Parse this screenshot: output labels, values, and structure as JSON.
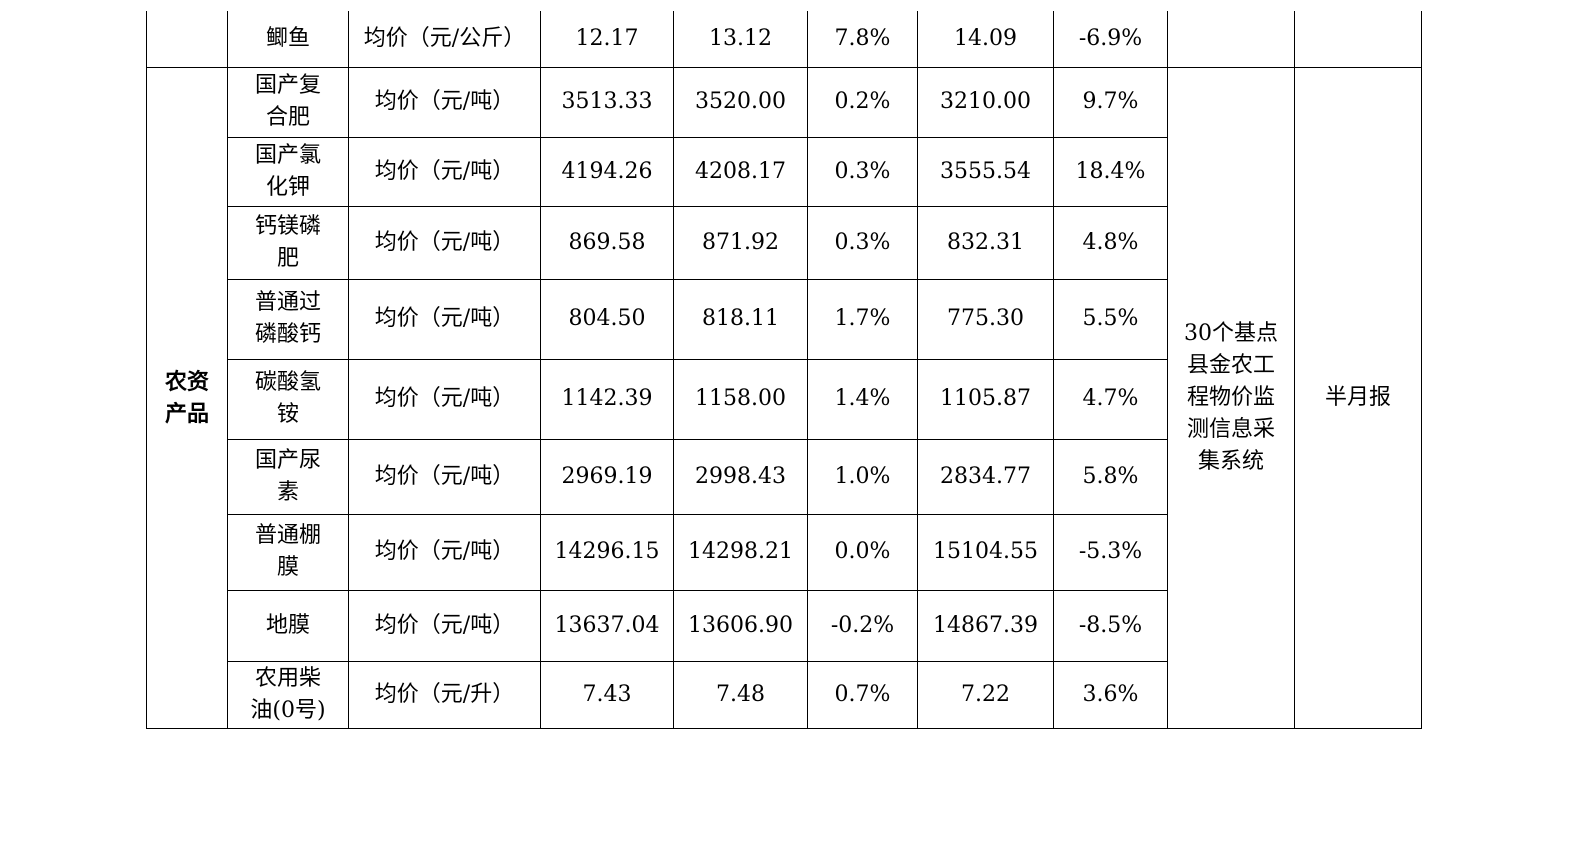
{
  "table": {
    "top_row": {
      "product": "鲫鱼",
      "unit": "均价（元/公斤）",
      "v1": "12.17",
      "v2": "13.12",
      "v3": "7.8%",
      "v4": "14.09",
      "v5": "-6.9%"
    },
    "category": "农资产品",
    "source": "30个基点县金农工程物价监测信息采集系统",
    "frequency": "半月报",
    "rows": [
      {
        "product": "国产复合肥",
        "unit": "均价（元/吨）",
        "v1": "3513.33",
        "v2": "3520.00",
        "v3": "0.2%",
        "v4": "3210.00",
        "v5": "9.7%"
      },
      {
        "product": "国产氯化钾",
        "unit": "均价（元/吨）",
        "v1": "4194.26",
        "v2": "4208.17",
        "v3": "0.3%",
        "v4": "3555.54",
        "v5": "18.4%"
      },
      {
        "product": "钙镁磷肥",
        "unit": "均价（元/吨）",
        "v1": "869.58",
        "v2": "871.92",
        "v3": "0.3%",
        "v4": "832.31",
        "v5": "4.8%"
      },
      {
        "product": "普通过磷酸钙",
        "unit": "均价（元/吨）",
        "v1": "804.50",
        "v2": "818.11",
        "v3": "1.7%",
        "v4": "775.30",
        "v5": "5.5%"
      },
      {
        "product": "碳酸氢铵",
        "unit": "均价（元/吨）",
        "v1": "1142.39",
        "v2": "1158.00",
        "v3": "1.4%",
        "v4": "1105.87",
        "v5": "4.7%"
      },
      {
        "product": "国产尿素",
        "unit": "均价（元/吨）",
        "v1": "2969.19",
        "v2": "2998.43",
        "v3": "1.0%",
        "v4": "2834.77",
        "v5": "5.8%"
      },
      {
        "product": "普通棚膜",
        "unit": "均价（元/吨）",
        "v1": "14296.15",
        "v2": "14298.21",
        "v3": "0.0%",
        "v4": "15104.55",
        "v5": "-5.3%"
      },
      {
        "product": "地膜",
        "unit": "均价（元/吨）",
        "v1": "13637.04",
        "v2": "13606.90",
        "v3": "-0.2%",
        "v4": "14867.39",
        "v5": "-8.5%"
      },
      {
        "product": "农用柴油(0号)",
        "unit": "均价（元/升）",
        "v1": "7.43",
        "v2": "7.48",
        "v3": "0.7%",
        "v4": "7.22",
        "v5": "3.6%"
      }
    ]
  }
}
